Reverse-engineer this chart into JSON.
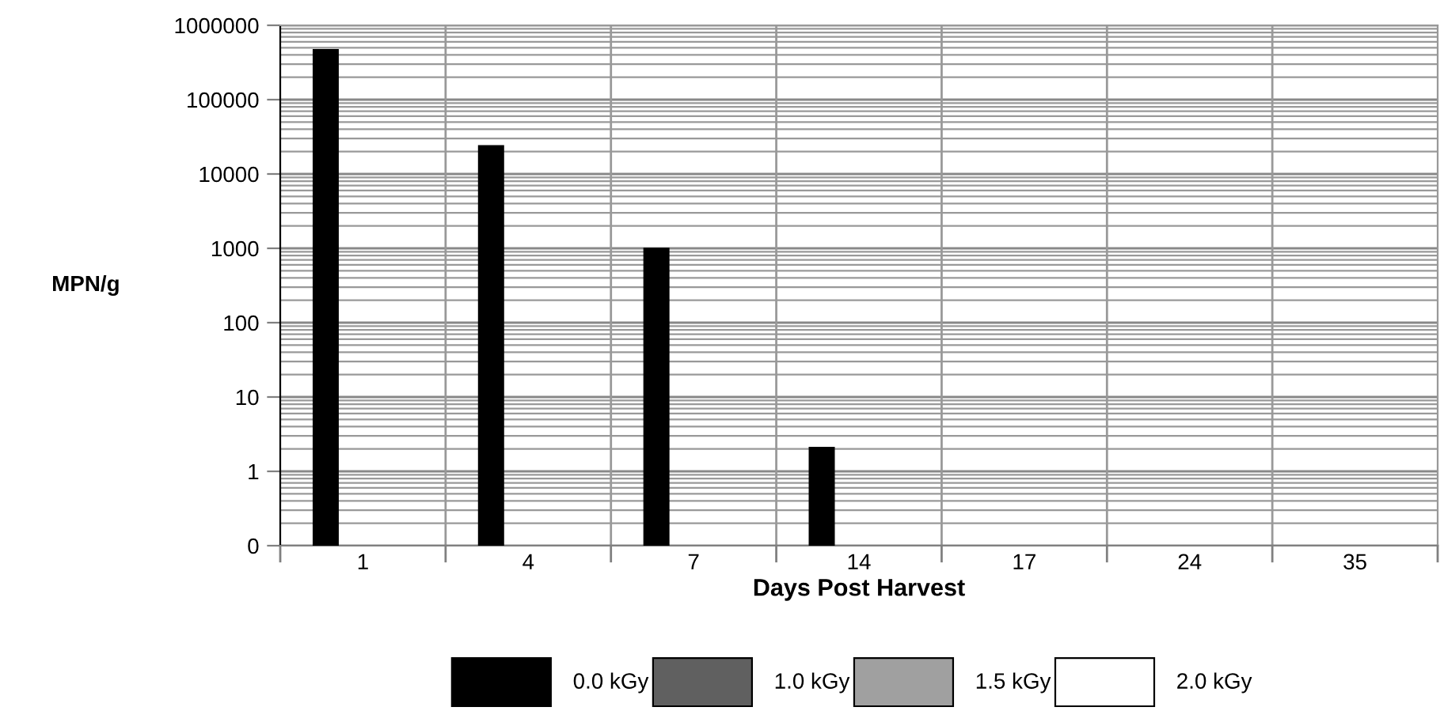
{
  "chart_data": {
    "type": "bar",
    "xlabel": "Days Post Harvest",
    "ylabel": "MPN/g",
    "categories": [
      "1",
      "4",
      "7",
      "14",
      "17",
      "24",
      "35"
    ],
    "series": [
      {
        "name": "0.0 kGy",
        "color": "#000000",
        "values": [
          470000,
          24000,
          1000,
          2,
          null,
          null,
          null
        ]
      },
      {
        "name": "1.0 kGy",
        "color": "#606060",
        "values": [
          null,
          null,
          null,
          null,
          null,
          null,
          null
        ]
      },
      {
        "name": "1.5 kGy",
        "color": "#a0a0a0",
        "values": [
          null,
          null,
          null,
          null,
          null,
          null,
          null
        ]
      },
      {
        "name": "2.0 kGy",
        "color": "#ffffff",
        "values": [
          null,
          null,
          null,
          null,
          null,
          null,
          null
        ]
      }
    ],
    "log": "y",
    "ylim": [
      0.1,
      1000000
    ],
    "yticks": [
      {
        "value": 0.1,
        "label": "0"
      },
      1,
      10,
      100,
      1000,
      10000,
      100000,
      1000000
    ],
    "grid": true,
    "legend": "bottom"
  }
}
